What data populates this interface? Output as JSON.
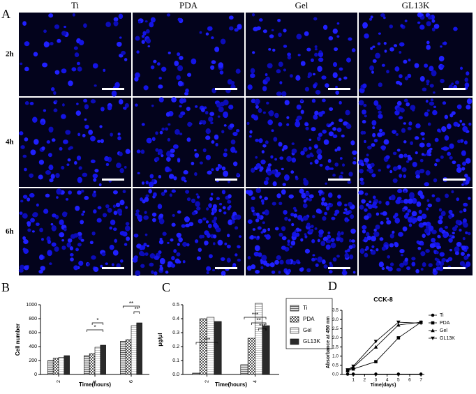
{
  "panel_labels": [
    "A",
    "B",
    "C",
    "D"
  ],
  "images": {
    "columns": [
      "Ti",
      "PDA",
      "Gel",
      "GL13K"
    ],
    "rows": [
      "2h",
      "4h",
      "6h"
    ]
  },
  "chart_data": [
    {
      "type": "bar",
      "categories": [
        "2",
        "4",
        "6"
      ],
      "xlabel": "Time(hours)",
      "ylabel": "Cell number",
      "ylim": [
        0,
        1000
      ],
      "yticks": [
        0,
        200,
        400,
        600,
        800,
        1000
      ],
      "series": [
        {
          "name": "Ti",
          "pattern": "hlines",
          "values": [
            200,
            270,
            475
          ]
        },
        {
          "name": "PDA",
          "pattern": "checker",
          "values": [
            235,
            300,
            500
          ]
        },
        {
          "name": "Gel",
          "pattern": "light",
          "values": [
            245,
            390,
            700
          ]
        },
        {
          "name": "GL13K",
          "pattern": "dark",
          "values": [
            270,
            420,
            740
          ]
        }
      ],
      "legend": "right-outside",
      "annotations": [
        "*",
        "*",
        "**",
        "**"
      ]
    },
    {
      "type": "bar",
      "categories": [
        "2",
        "4"
      ],
      "xlabel": "Time(hours)",
      "ylabel": "μg/μl",
      "ylim": [
        0,
        0.5
      ],
      "yticks": [
        {
          "value": 0,
          "label": "0.0"
        },
        0.1,
        0.2,
        0.3,
        0.4,
        0.5
      ],
      "series": [
        {
          "pattern": "hlines",
          "values": [
            0.01,
            0.07
          ]
        },
        {
          "pattern": "checker",
          "values": [
            0.4,
            0.26
          ]
        },
        {
          "pattern": "light",
          "values": [
            0.41,
            0.51
          ]
        },
        {
          "pattern": "dark",
          "values": [
            0.38,
            0.35
          ]
        }
      ],
      "annotations": [
        "***",
        "***",
        "**",
        "***"
      ]
    },
    {
      "type": "line",
      "title": "CCK-8",
      "xlabel": "Time(days)",
      "ylabel": "Absorbance at 450 nm",
      "x": [
        0.5,
        1,
        3,
        5,
        7
      ],
      "xlim": [
        0,
        7.3
      ],
      "xticks": [
        1,
        2,
        3,
        4,
        5,
        6,
        7
      ],
      "ylim": [
        0,
        3.5
      ],
      "yticks": [
        {
          "value": 0,
          "label": "0.0"
        },
        0.5,
        {
          "value": 1,
          "label": "1.0"
        },
        1.5,
        {
          "value": 2,
          "label": "2.0"
        },
        2.5,
        {
          "value": 3,
          "label": "3.0"
        },
        3.5
      ],
      "series": [
        {
          "name": "Ti",
          "marker": "circle",
          "values": [
            0.02,
            0.02,
            0.02,
            0.02,
            0.02
          ]
        },
        {
          "name": "PDA",
          "marker": "square",
          "values": [
            0.2,
            0.3,
            0.7,
            2.0,
            2.85
          ]
        },
        {
          "name": "Gel",
          "marker": "triangle",
          "values": [
            0.2,
            0.4,
            1.5,
            2.7,
            2.85
          ]
        },
        {
          "name": "GL13K",
          "marker": "down-triangle",
          "values": [
            0.25,
            0.45,
            1.8,
            2.85,
            2.8
          ]
        }
      ],
      "color": "#000000",
      "legend": "right-outside"
    }
  ]
}
